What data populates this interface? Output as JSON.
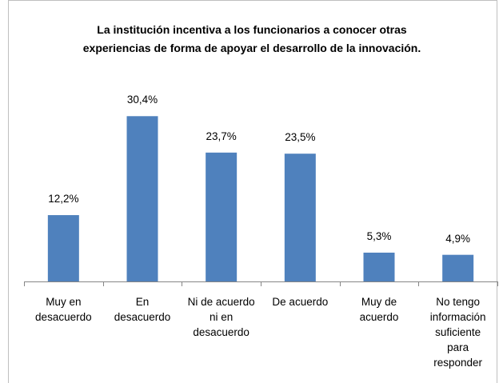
{
  "chart_data": {
    "type": "bar",
    "title": "La institución incentiva a los funcionarios a conocer otras experiencias de forma de apoyar el desarrollo de la innovación.",
    "categories": [
      "Muy en desacuerdo",
      "En desacuerdo",
      "Ni de acuerdo ni en desacuerdo",
      "De acuerdo",
      "Muy de acuerdo",
      "No tengo información suficiente para responder"
    ],
    "values": [
      12.2,
      30.4,
      23.7,
      23.5,
      5.3,
      4.9
    ],
    "value_labels": [
      "12,2%",
      "30,4%",
      "23,7%",
      "23,5%",
      "5,3%",
      "4,9%"
    ],
    "color": "#4f81bd",
    "ylim": [
      0,
      35
    ]
  }
}
